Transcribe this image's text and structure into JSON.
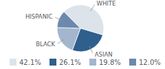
{
  "chart_data": {
    "type": "pie",
    "categories": [
      "WHITE",
      "ASIAN",
      "BLACK",
      "HISPANIC"
    ],
    "values": [
      42.1,
      26.1,
      19.8,
      12.0
    ],
    "value_labels": [
      "42.1%",
      "26.1%",
      "19.8%",
      "12.0%"
    ],
    "colors": [
      "#dce3eb",
      "#2f5f8c",
      "#a3b6ce",
      "#6c89ad"
    ],
    "legend": "bottom"
  }
}
